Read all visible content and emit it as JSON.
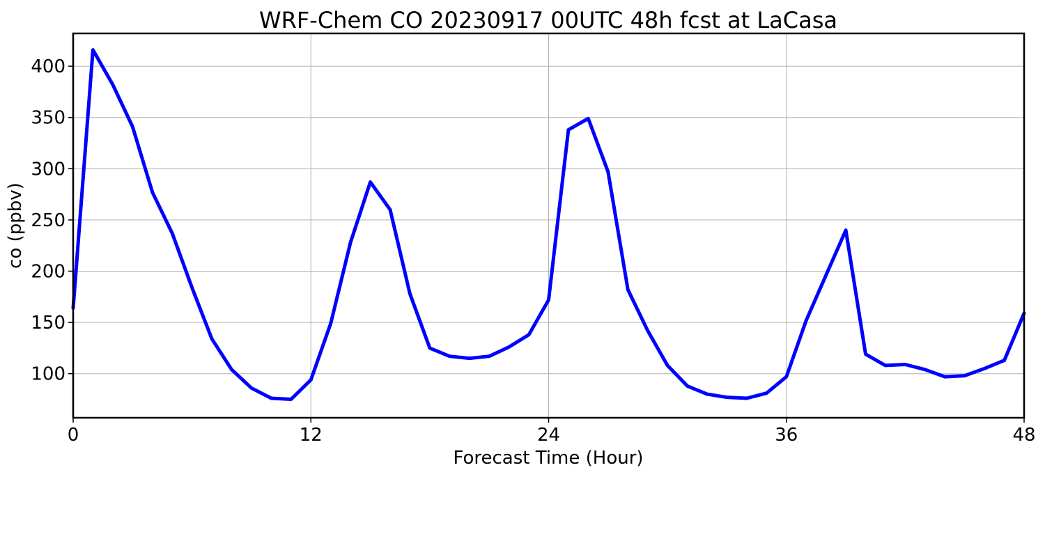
{
  "chart_data": {
    "type": "line",
    "title": "WRF-Chem CO  20230917 00UTC 48h fcst at LaCasa",
    "xlabel": "Forecast Time (Hour)",
    "ylabel": "co  (ppbv)",
    "xlim": [
      0,
      48
    ],
    "ylim": [
      57,
      432
    ],
    "xticks": [
      0,
      12,
      24,
      36,
      48
    ],
    "yticks": [
      100,
      150,
      200,
      250,
      300,
      350,
      400
    ],
    "grid": true,
    "line_color": "#0000ff",
    "series": [
      {
        "x": [
          0,
          1,
          2,
          3,
          4,
          5,
          6,
          7,
          8,
          9,
          10,
          11,
          12,
          13,
          14,
          15,
          16,
          17,
          18,
          19,
          20,
          21,
          22,
          23,
          24,
          25,
          26,
          27,
          28,
          29,
          30,
          31,
          32,
          33,
          34,
          35,
          36,
          37,
          38,
          39,
          40,
          41,
          42,
          43,
          44,
          45,
          46,
          47,
          48
        ],
        "values": [
          164,
          416,
          382,
          341,
          277,
          237,
          184,
          134,
          104,
          86,
          76,
          75,
          94,
          149,
          228,
          287,
          260,
          178,
          125,
          117,
          115,
          117,
          126,
          138,
          172,
          338,
          349,
          297,
          182,
          142,
          108,
          88,
          80,
          77,
          76,
          81,
          97,
          152,
          196,
          240,
          119,
          108,
          109,
          104,
          97,
          98,
          105,
          113,
          159
        ]
      }
    ]
  }
}
